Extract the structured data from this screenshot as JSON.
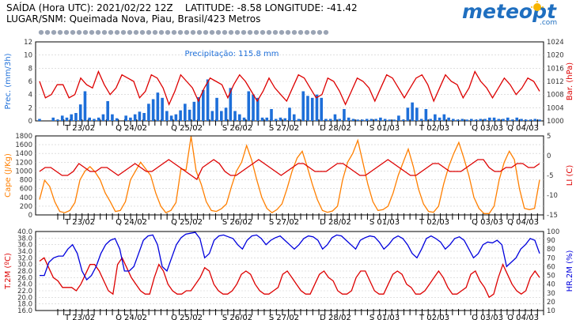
{
  "header": {
    "line1_prefix": "SAÍDA (Hora UTC): ",
    "run_time": "2021/02/22 12Z",
    "lat_label": "LATITUDE: ",
    "lat": "-8.58",
    "lon_label": "LONGITUDE: ",
    "lon": "-41.42",
    "line2_prefix": "LUGAR/SNM: ",
    "place": "Queimada Nova, Piau, Brasil/423 Metros"
  },
  "logo": {
    "text": "meteopt",
    "suffix": ".com"
  },
  "colors": {
    "precip": "#1e6fd9",
    "red": "#dd0000",
    "orange": "#ff7f00",
    "blue": "#0000dd",
    "axis_left": "#1e6fd9",
    "grid": "#cccccc"
  },
  "day_labels": [
    "T 23/02",
    "Q 24/02",
    "Q 25/02",
    "S 26/02",
    "S 27/02",
    "D 28/02",
    "S 01/03",
    "T 02/03",
    "Q 03/03",
    "Q 04/03"
  ],
  "chart_data": [
    {
      "type": "bar+line",
      "annotation": "Precipitação: 115.8 mm",
      "left_axis": {
        "label": "Prec. (mm/3h)",
        "ticks": [
          "0",
          "2",
          "4",
          "6",
          "8",
          "10",
          "12"
        ],
        "ylim": [
          0,
          12
        ]
      },
      "right_axis": {
        "label": "Bar. (hPa)",
        "ticks": [
          "1000",
          "1004",
          "1008",
          "1012",
          "1016",
          "1020",
          "1024"
        ],
        "ylim": [
          1000,
          1024
        ]
      },
      "series": [
        {
          "values": [
            0.3,
            0,
            0,
            0.5,
            0.2,
            0.8,
            0.5,
            1.0,
            1.2,
            2.5,
            4.5,
            0.5,
            0.3,
            0.5,
            1.0,
            3.0,
            1.0,
            0.4,
            0,
            0.8,
            0.5,
            1.0,
            1.4,
            1.2,
            2.6,
            3.3,
            4.3,
            3.5,
            1.5,
            0.8,
            1.0,
            1.6,
            2.6,
            1.7,
            2.9,
            3.6,
            4.7,
            6.3,
            1.5,
            3.5,
            1.5,
            2.0,
            5.0,
            1.5,
            1.0,
            0.5,
            4.5,
            4.0,
            3.5,
            0.5,
            0.5,
            1.8,
            0.3,
            0.5,
            0.4,
            2.0,
            1.0,
            0.3,
            4.5,
            3.8,
            3.5,
            4.0,
            3.5,
            0.3,
            0.3,
            1.0,
            0.3,
            1.8,
            0.5,
            0.3,
            0.2,
            0.2,
            0.3,
            0.3,
            0.3,
            0.5,
            0.3,
            0.2,
            0.2,
            0.8,
            0.2,
            2.0,
            2.8,
            2.0,
            0.3,
            1.8,
            0.3,
            1.0,
            0.5,
            1.0,
            0.5,
            0.3,
            0.2,
            0.3,
            0.2,
            0.3,
            0.2,
            0.3,
            0.3,
            0.5,
            0.5,
            0.3,
            0.3,
            0.5,
            0.2,
            0.5,
            0.3,
            0.2,
            0.2,
            0.3,
            0.2
          ]
        },
        {
          "values": [
            1012,
            1007,
            1008,
            1011,
            1011,
            1007,
            1008,
            1013,
            1011,
            1010,
            1015,
            1011,
            1008,
            1010,
            1014,
            1013,
            1012,
            1007,
            1009,
            1014,
            1013,
            1010,
            1005,
            1009,
            1014,
            1012,
            1010,
            1006,
            1010,
            1013,
            1012,
            1011,
            1007,
            1011,
            1014,
            1012,
            1009,
            1006,
            1009,
            1013,
            1010,
            1008,
            1006,
            1010,
            1014,
            1013,
            1010,
            1007,
            1008,
            1013,
            1012,
            1009,
            1005,
            1009,
            1013,
            1012,
            1010,
            1006,
            1010,
            1014,
            1013,
            1010,
            1007,
            1010,
            1013,
            1014,
            1011,
            1006,
            1010,
            1014,
            1012,
            1011,
            1007,
            1010,
            1015,
            1012,
            1010,
            1007,
            1010,
            1013,
            1011,
            1008,
            1010,
            1013,
            1012,
            1009
          ]
        }
      ]
    },
    {
      "type": "line",
      "left_axis": {
        "label": "Cape (J/Kg)",
        "ticks": [
          "0",
          "200",
          "400",
          "600",
          "800",
          "1000",
          "1200",
          "1400",
          "1600",
          "1800"
        ],
        "ylim": [
          0,
          1800
        ]
      },
      "right_axis": {
        "label": "LI (C)",
        "ticks": [
          "-15",
          "-10",
          "-5",
          "0",
          "5"
        ],
        "ylim": [
          -15,
          5
        ]
      },
      "series": [
        {
          "values": [
            350,
            790,
            650,
            300,
            80,
            50,
            100,
            280,
            800,
            1000,
            1100,
            980,
            800,
            500,
            300,
            80,
            100,
            300,
            800,
            1000,
            1200,
            1050,
            900,
            500,
            200,
            50,
            100,
            280,
            1050,
            1020,
            1790,
            1000,
            700,
            300,
            100,
            80,
            140,
            250,
            650,
            1000,
            1200,
            1580,
            1250,
            800,
            400,
            150,
            50,
            120,
            250,
            600,
            1000,
            1300,
            1450,
            1100,
            700,
            350,
            100,
            60,
            90,
            200,
            800,
            1200,
            1400,
            1700,
            1200,
            700,
            300,
            100,
            120,
            200,
            500,
            900,
            1200,
            1500,
            1100,
            600,
            250,
            80,
            60,
            200,
            700,
            1100,
            1400,
            1650,
            1300,
            900,
            400,
            150,
            30,
            30,
            200,
            800,
            1200,
            1450,
            1260,
            600,
            150,
            120,
            150,
            800
          ]
        },
        {
          "values": [
            -4,
            -3,
            -3,
            -4,
            -5,
            -5,
            -4,
            -2,
            -3,
            -4,
            -4,
            -3,
            -3,
            -4,
            -5,
            -4,
            -3,
            -2,
            -3,
            -4,
            -4,
            -3,
            -2,
            -1,
            -2,
            -3,
            -4,
            -5,
            -6,
            -3,
            -2,
            -1,
            -2,
            -4,
            -5,
            -5,
            -4,
            -3,
            -2,
            -1,
            -2,
            -3,
            -4,
            -5,
            -4,
            -3,
            -2,
            -2,
            -3,
            -4,
            -4,
            -4,
            -3,
            -2,
            -2,
            -3,
            -4,
            -5,
            -5,
            -4,
            -3,
            -2,
            -1,
            -2,
            -3,
            -4,
            -5,
            -5,
            -4,
            -3,
            -2,
            -2,
            -3,
            -4,
            -4,
            -4,
            -3,
            -2,
            -1,
            -1,
            -3,
            -4,
            -4,
            -3,
            -3,
            -2,
            -2,
            -3,
            -3,
            -2
          ]
        }
      ]
    },
    {
      "type": "line",
      "left_axis": {
        "label": "T.2M (ºC)",
        "ticks": [
          "16.0",
          "18.0",
          "20.0",
          "22.0",
          "24.0",
          "26.0",
          "28.0",
          "30.0",
          "32.0",
          "34.0",
          "36.0",
          "38.0",
          "40.0"
        ],
        "ylim": [
          16,
          40
        ]
      },
      "right_axis": {
        "label": "HR.2M (%)",
        "ticks": [
          "10",
          "20",
          "30",
          "40",
          "50",
          "60",
          "70",
          "80",
          "90",
          "100"
        ],
        "ylim": [
          10,
          100
        ]
      },
      "series": [
        {
          "values": [
            31,
            32,
            29,
            26,
            25,
            23,
            23,
            23,
            22,
            24,
            27,
            30,
            30,
            28,
            25,
            22,
            21,
            30,
            32,
            29,
            26,
            24,
            22,
            21,
            21,
            26,
            30,
            28,
            24,
            22,
            21,
            21,
            22,
            22,
            24,
            26,
            29,
            28,
            24,
            22,
            21,
            21,
            22,
            24,
            27,
            28,
            27,
            24,
            22,
            21,
            21,
            22,
            23,
            27,
            28,
            26,
            24,
            22,
            21,
            21,
            24,
            27,
            28,
            26,
            25,
            22,
            21,
            21,
            22,
            26,
            28,
            28,
            25,
            22,
            21,
            21,
            24,
            27,
            28,
            27,
            24,
            23,
            21,
            21,
            22,
            24,
            26,
            28,
            26,
            23,
            21,
            21,
            22,
            23,
            27,
            28,
            25,
            23,
            20,
            21,
            26,
            30,
            27,
            24,
            22,
            21,
            22,
            26,
            28,
            26
          ]
        },
        {
          "values": [
            50,
            50,
            65,
            70,
            72,
            72,
            80,
            85,
            75,
            55,
            45,
            50,
            60,
            75,
            85,
            90,
            92,
            80,
            55,
            55,
            60,
            75,
            90,
            95,
            96,
            85,
            60,
            55,
            70,
            85,
            93,
            97,
            98,
            99,
            92,
            70,
            75,
            90,
            95,
            96,
            94,
            92,
            85,
            80,
            90,
            95,
            96,
            92,
            85,
            90,
            93,
            95,
            90,
            85,
            80,
            85,
            92,
            95,
            94,
            90,
            80,
            85,
            93,
            96,
            95,
            90,
            85,
            80,
            90,
            93,
            95,
            94,
            88,
            80,
            85,
            92,
            95,
            92,
            85,
            75,
            70,
            80,
            92,
            95,
            92,
            88,
            80,
            85,
            92,
            94,
            90,
            80,
            70,
            75,
            85,
            88,
            87,
            90,
            85,
            60,
            65,
            70,
            80,
            85,
            92,
            90,
            75
          ]
        }
      ]
    }
  ]
}
